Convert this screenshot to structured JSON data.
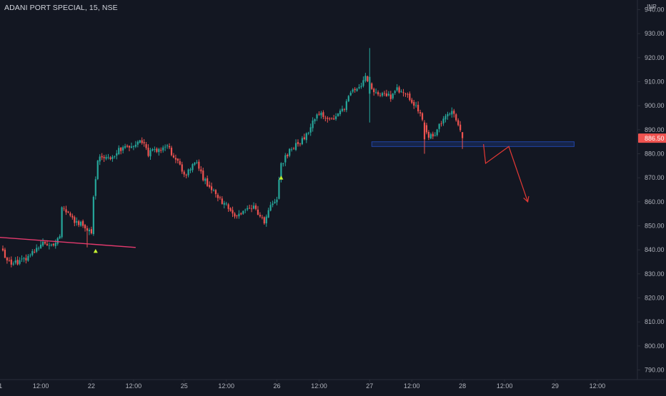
{
  "header": {
    "symbol": "ADANI PORT SPECIAL",
    "interval": "15",
    "exchange": "NSE"
  },
  "colors": {
    "background": "#131722",
    "up": "#26a69a",
    "down": "#ef5350",
    "axis_text": "#b2b5be",
    "axis_line": "#2a2e39",
    "trend_line": "#e53a6e",
    "zone_fill": "#2962ff",
    "projection": "#e53935",
    "marker": "#c6f432",
    "price_label_bg": "#ef5350"
  },
  "chart_data": {
    "type": "candlestick",
    "currency": "INR",
    "ylim": [
      786,
      944
    ],
    "y_ticks": [
      790,
      800,
      810,
      820,
      830,
      840,
      850,
      860,
      870,
      880,
      890,
      900,
      910,
      920,
      930,
      940
    ],
    "y_tick_labels": [
      "790.00",
      "800.00",
      "810.00",
      "820.00",
      "830.00",
      "840.00",
      "850.00",
      "860.00",
      "870.00",
      "880.00",
      "890.00",
      "900.00",
      "910.00",
      "920.00",
      "930.00",
      "940.00"
    ],
    "x_range": [
      0,
      280
    ],
    "x_ticks": [
      {
        "index": -2,
        "label": "21"
      },
      {
        "index": 18,
        "label": "12:00"
      },
      {
        "index": 42,
        "label": "22"
      },
      {
        "index": 62,
        "label": "12:00"
      },
      {
        "index": 86,
        "label": "25"
      },
      {
        "index": 106,
        "label": "12:00"
      },
      {
        "index": 130,
        "label": "26"
      },
      {
        "index": 150,
        "label": "12:00"
      },
      {
        "index": 174,
        "label": "27"
      },
      {
        "index": 194,
        "label": "12:00"
      },
      {
        "index": 218,
        "label": "28"
      },
      {
        "index": 238,
        "label": "12:00"
      },
      {
        "index": 262,
        "label": "29"
      },
      {
        "index": 282,
        "label": "12:00"
      }
    ],
    "last_price": 886.5,
    "last_price_label": "886.50",
    "anchors": [
      [
        0,
        839
      ],
      [
        4,
        834
      ],
      [
        8,
        835
      ],
      [
        12,
        837
      ],
      [
        16,
        841
      ],
      [
        20,
        843
      ],
      [
        24,
        842
      ],
      [
        27,
        845
      ],
      [
        28,
        858
      ],
      [
        31,
        855
      ],
      [
        34,
        852
      ],
      [
        37,
        851
      ],
      [
        40,
        849
      ],
      [
        42,
        847
      ],
      [
        43,
        862
      ],
      [
        45,
        878
      ],
      [
        48,
        879
      ],
      [
        51,
        878
      ],
      [
        54,
        881
      ],
      [
        57,
        882
      ],
      [
        60,
        883
      ],
      [
        63,
        884
      ],
      [
        66,
        885
      ],
      [
        69,
        880
      ],
      [
        72,
        882
      ],
      [
        75,
        881
      ],
      [
        78,
        883
      ],
      [
        81,
        879
      ],
      [
        84,
        876
      ],
      [
        86,
        871
      ],
      [
        89,
        874
      ],
      [
        92,
        876
      ],
      [
        95,
        870
      ],
      [
        98,
        866
      ],
      [
        101,
        863
      ],
      [
        104,
        860
      ],
      [
        107,
        858
      ],
      [
        110,
        853
      ],
      [
        113,
        855
      ],
      [
        116,
        857
      ],
      [
        119,
        858
      ],
      [
        122,
        853
      ],
      [
        124,
        852
      ],
      [
        127,
        858
      ],
      [
        130,
        862
      ],
      [
        132,
        875
      ],
      [
        135,
        880
      ],
      [
        138,
        883
      ],
      [
        141,
        885
      ],
      [
        144,
        888
      ],
      [
        147,
        893
      ],
      [
        150,
        897
      ],
      [
        153,
        895
      ],
      [
        156,
        894
      ],
      [
        159,
        897
      ],
      [
        162,
        899
      ],
      [
        164,
        903
      ],
      [
        166,
        907
      ],
      [
        169,
        908
      ],
      [
        172,
        912
      ],
      [
        175,
        907
      ],
      [
        178,
        904
      ],
      [
        181,
        906
      ],
      [
        184,
        903
      ],
      [
        187,
        907
      ],
      [
        190,
        905
      ],
      [
        193,
        903
      ],
      [
        196,
        900
      ],
      [
        199,
        895
      ],
      [
        202,
        887
      ],
      [
        205,
        888
      ],
      [
        208,
        893
      ],
      [
        211,
        896
      ],
      [
        214,
        897
      ],
      [
        216,
        892
      ],
      [
        218,
        886.5
      ]
    ],
    "special_candles": [
      {
        "index": 40,
        "open": 849,
        "high": 850,
        "low": 841,
        "close": 848
      },
      {
        "index": 174,
        "open": 905,
        "high": 924,
        "low": 893,
        "close": 912
      },
      {
        "index": 200,
        "open": 893,
        "high": 894,
        "low": 880,
        "close": 886
      },
      {
        "index": 218,
        "open": 889,
        "high": 889,
        "low": 882,
        "close": 886.5
      }
    ],
    "drawings": {
      "trend_line": {
        "from": [
          -6,
          845.5
        ],
        "to": [
          63,
          841
        ]
      },
      "zone": {
        "from_index": 175,
        "to_index": 271,
        "top": 885,
        "bottom": 883
      },
      "projection_path": [
        [
          228,
          884
        ],
        [
          229,
          876
        ],
        [
          240,
          883
        ],
        [
          249,
          860
        ]
      ],
      "signal_markers": [
        {
          "index": 44,
          "price": 839.5
        },
        {
          "index": 132,
          "price": 870
        }
      ]
    }
  }
}
